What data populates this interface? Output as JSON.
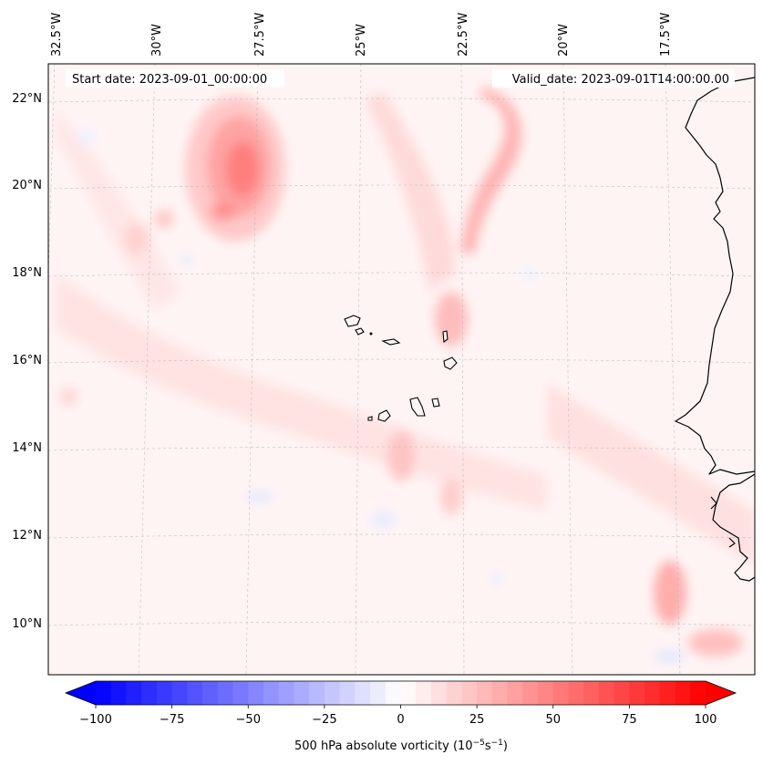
{
  "map": {
    "start_date_label": "Start date: 2023-09-01_00:00:00",
    "valid_date_label": "Valid_date: 2023-09-01T14:00:00.00",
    "lon_labels": [
      "32.5°W",
      "30°W",
      "27.5°W",
      "25°W",
      "22.5°W",
      "20°W",
      "17.5°W"
    ],
    "lat_labels": [
      "22°N",
      "20°N",
      "18°N",
      "16°N",
      "14°N",
      "12°N",
      "10°N"
    ],
    "region": "Cape Verde / West African coast",
    "islands": "Cape Verde islands"
  },
  "colorbar": {
    "title": "500 hPa absolute vorticity (10",
    "title_exp1": "−5",
    "title_mid": "s",
    "title_exp2": "−1",
    "title_end": ")",
    "ticks": [
      "−100",
      "−75",
      "−50",
      "−25",
      "0",
      "25",
      "50",
      "75",
      "100"
    ],
    "min": -100,
    "max": 100,
    "low_color": "#0000ff",
    "mid_color": "#ffffff",
    "high_color": "#ff0000"
  }
}
